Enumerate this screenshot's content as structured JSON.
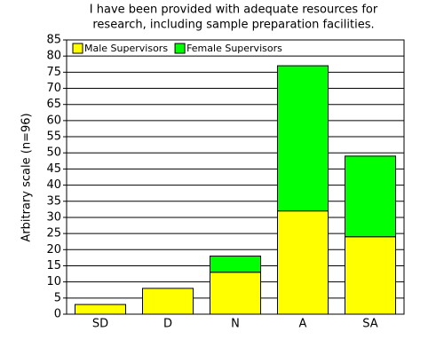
{
  "chart_data": {
    "type": "bar",
    "stacked": true,
    "title": [
      "I have been provided with adequate resources for",
      "research, including sample preparation facilities."
    ],
    "y_label": "Arbitrary scale (n=96)",
    "categories": [
      "SD",
      "D",
      "N",
      "A",
      "SA"
    ],
    "series": [
      {
        "name": "Male Supervisors",
        "color": "#ffff00",
        "values": [
          3,
          8,
          13,
          32,
          24
        ]
      },
      {
        "name": "Female Supervisors",
        "color": "#00ff00",
        "values": [
          0,
          0,
          5,
          45,
          25
        ]
      }
    ],
    "ylim": [
      0,
      85
    ],
    "yticks": [
      0,
      5,
      10,
      15,
      20,
      25,
      30,
      35,
      40,
      45,
      50,
      55,
      60,
      65,
      70,
      75,
      80,
      85
    ],
    "grid": true,
    "legend": "top-left"
  }
}
